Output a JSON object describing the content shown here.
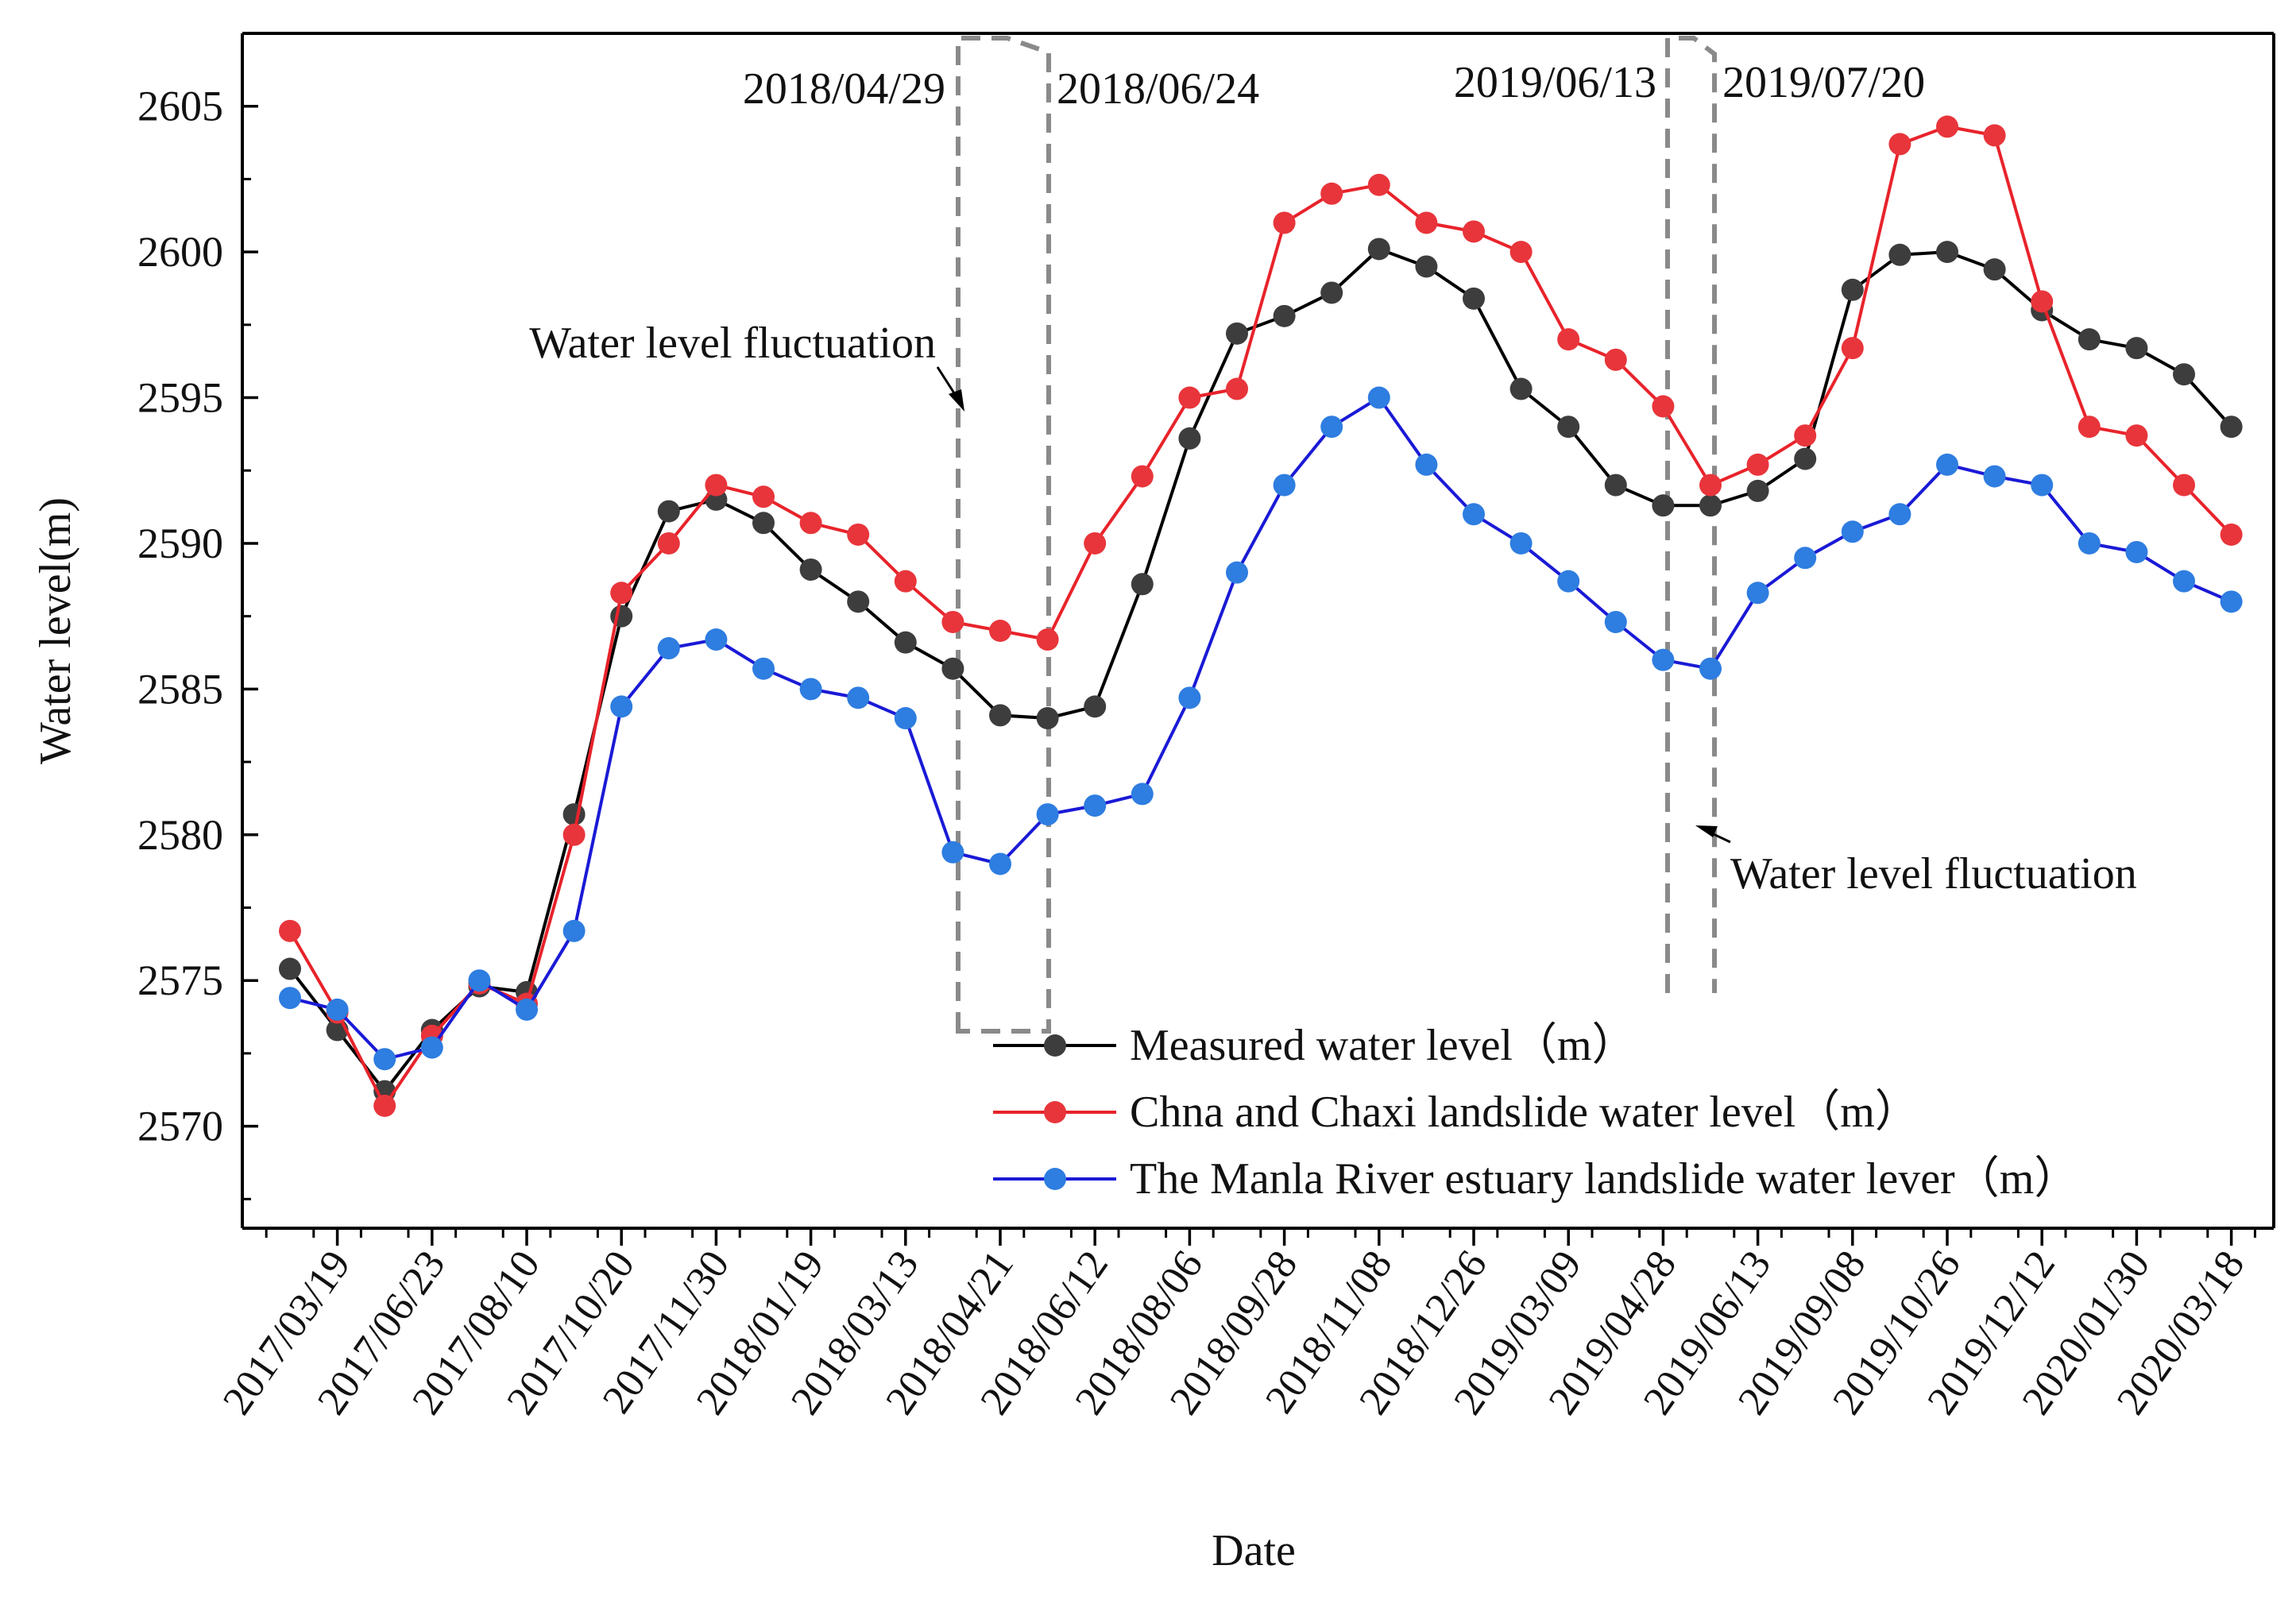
{
  "chart_data": {
    "type": "line",
    "ylabel": "Water level(m)",
    "xlabel": "Date",
    "ylim": [
      2566.5,
      2607.5
    ],
    "yticks": [
      2570,
      2575,
      2580,
      2585,
      2590,
      2595,
      2600,
      2605
    ],
    "xtick_labels": [
      "2017/03/19",
      "2017/06/23",
      "2017/08/10",
      "2017/10/20",
      "2017/11/30",
      "2018/01/19",
      "2018/03/13",
      "2018/04/21",
      "2018/06/12",
      "2018/08/06",
      "2018/09/28",
      "2018/11/08",
      "2018/12/26",
      "2019/03/09",
      "2019/04/28",
      "2019/06/13",
      "2019/09/08",
      "2019/10/26",
      "2019/12/12",
      "2020/01/30",
      "2020/03/18"
    ],
    "series": [
      {
        "name": "Measured water level（m）",
        "color": "#3d3d3d",
        "line_color": "#000000",
        "values": [
          2575.4,
          2573.3,
          2571.2,
          2573.3,
          2574.8,
          2574.6,
          2580.7,
          2587.5,
          2591.1,
          2591.5,
          2590.7,
          2589.1,
          2588.0,
          2586.6,
          2585.7,
          2584.1,
          2584.0,
          2584.4,
          2588.6,
          2593.6,
          2597.2,
          2597.8,
          2598.6,
          2600.1,
          2599.5,
          2598.4,
          2595.3,
          2594.0,
          2592.0,
          2591.3,
          2591.3,
          2591.8,
          2592.9,
          2598.7,
          2599.9,
          2600.0,
          2599.4,
          2598.0,
          2597.0,
          2596.7,
          2595.8,
          2594.0
        ]
      },
      {
        "name": "Chna and Chaxi landslide water level（m）",
        "color": "#e8353b",
        "line_color": "#e8232b",
        "values": [
          2576.7,
          2573.9,
          2570.7,
          2573.1,
          2574.9,
          2574.2,
          2580.0,
          2588.3,
          2590.0,
          2592.0,
          2591.6,
          2590.7,
          2590.3,
          2588.7,
          2587.3,
          2587.0,
          2586.7,
          2590.0,
          2592.3,
          2595.0,
          2595.3,
          2601.0,
          2602.0,
          2602.3,
          2601.0,
          2600.7,
          2600.0,
          2597.0,
          2596.3,
          2594.7,
          2592.0,
          2592.7,
          2593.7,
          2596.7,
          2603.7,
          2604.3,
          2604.0,
          2598.3,
          2594.0,
          2593.7,
          2592.0,
          2590.3
        ]
      },
      {
        "name": "The Manla River estuary landslide water lever（m）",
        "color": "#2e7de0",
        "line_color": "#1a1ad6",
        "values": [
          2574.4,
          2574.0,
          2572.3,
          2572.7,
          2575.0,
          2574.0,
          2576.7,
          2584.4,
          2586.4,
          2586.7,
          2585.7,
          2585.0,
          2584.7,
          2584.0,
          2579.4,
          2579.0,
          2580.7,
          2581.0,
          2581.4,
          2584.7,
          2589.0,
          2592.0,
          2594.0,
          2595.0,
          2592.7,
          2591.0,
          2590.0,
          2588.7,
          2587.3,
          2586.0,
          2585.7,
          2588.3,
          2589.5,
          2590.4,
          2591.0,
          2592.7,
          2592.3,
          2592.0,
          2590.0,
          2589.7,
          2588.7,
          2588.0
        ]
      }
    ],
    "annotations": [
      {
        "text": "2018/04/29"
      },
      {
        "text": "2018/06/24"
      },
      {
        "text": "2019/06/13"
      },
      {
        "text": "2019/07/20"
      },
      {
        "text": "Water level fluctuation"
      },
      {
        "text": "Water level fluctuation"
      }
    ],
    "legend_position": "bottom-right inside plot"
  }
}
